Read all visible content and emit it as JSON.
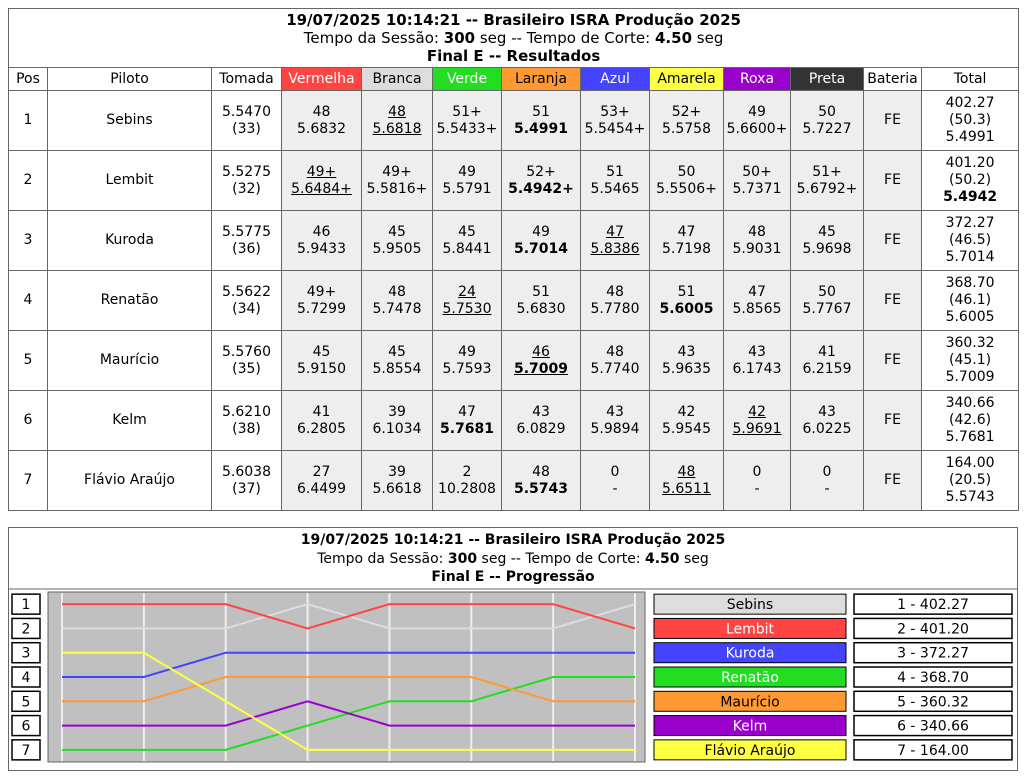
{
  "results": {
    "title": "19/07/2025 10:14:21 -- Brasileiro ISRA Produção 2025",
    "session": [
      "Tempo da Sessão:",
      "300",
      "seg -- Tempo de Corte:",
      "4.50",
      "seg"
    ],
    "subtitle": "Final E -- Resultados",
    "columns_before": [
      "Pos",
      "Piloto",
      "Tomada"
    ],
    "lanes": [
      {
        "name": "Vermelha",
        "color": "#ff4444"
      },
      {
        "name": "Branca",
        "color": "#dddddd"
      },
      {
        "name": "Verde",
        "color": "#22dd22"
      },
      {
        "name": "Laranja",
        "color": "#ff9933"
      },
      {
        "name": "Azul",
        "color": "#4444ff"
      },
      {
        "name": "Amarela",
        "color": "#ffff44"
      },
      {
        "name": "Roxa",
        "color": "#9900cc"
      },
      {
        "name": "Preta",
        "color": "#333333"
      }
    ],
    "columns_after": [
      "Bateria",
      "Total"
    ],
    "rows": [
      {
        "pos": "1",
        "driver": "Sebins",
        "tomada": [
          "5.5470",
          "(33)"
        ],
        "lanes": [
          {
            "laps": "48",
            "time": "5.6832"
          },
          {
            "laps": "48",
            "time": "5.6818",
            "underline": true
          },
          {
            "laps": "51+",
            "time": "5.5433+"
          },
          {
            "laps": "51",
            "time": "5.4991",
            "bold": true
          },
          {
            "laps": "53+",
            "time": "5.5454+"
          },
          {
            "laps": "52+",
            "time": "5.5758"
          },
          {
            "laps": "49",
            "time": "5.6600+"
          },
          {
            "laps": "50",
            "time": "5.7227"
          }
        ],
        "bateria": "FE",
        "total": [
          "402.27",
          "(50.3)",
          "5.4991"
        ]
      },
      {
        "pos": "2",
        "driver": "Lembit",
        "tomada": [
          "5.5275",
          "(32)"
        ],
        "lanes": [
          {
            "laps": "49+",
            "time": "5.6484+",
            "underline": true
          },
          {
            "laps": "49+",
            "time": "5.5816+"
          },
          {
            "laps": "49",
            "time": "5.5791"
          },
          {
            "laps": "52+",
            "time": "5.4942+",
            "bold": true
          },
          {
            "laps": "51",
            "time": "5.5465"
          },
          {
            "laps": "50",
            "time": "5.5506+"
          },
          {
            "laps": "50+",
            "time": "5.7371"
          },
          {
            "laps": "51+",
            "time": "5.6792+"
          }
        ],
        "bateria": "FE",
        "total": [
          "401.20",
          "(50.2)",
          "5.4942"
        ],
        "total_bold": true
      },
      {
        "pos": "3",
        "driver": "Kuroda",
        "tomada": [
          "5.5775",
          "(36)"
        ],
        "lanes": [
          {
            "laps": "46",
            "time": "5.9433"
          },
          {
            "laps": "45",
            "time": "5.9505"
          },
          {
            "laps": "45",
            "time": "5.8441"
          },
          {
            "laps": "49",
            "time": "5.7014",
            "bold": true
          },
          {
            "laps": "47",
            "time": "5.8386",
            "underline": true
          },
          {
            "laps": "47",
            "time": "5.7198"
          },
          {
            "laps": "48",
            "time": "5.9031"
          },
          {
            "laps": "45",
            "time": "5.9698"
          }
        ],
        "bateria": "FE",
        "total": [
          "372.27",
          "(46.5)",
          "5.7014"
        ]
      },
      {
        "pos": "4",
        "driver": "Renatão",
        "tomada": [
          "5.5622",
          "(34)"
        ],
        "lanes": [
          {
            "laps": "49+",
            "time": "5.7299"
          },
          {
            "laps": "48",
            "time": "5.7478"
          },
          {
            "laps": "24",
            "time": "5.7530",
            "underline": true
          },
          {
            "laps": "51",
            "time": "5.6830"
          },
          {
            "laps": "48",
            "time": "5.7780"
          },
          {
            "laps": "51",
            "time": "5.6005",
            "bold": true
          },
          {
            "laps": "47",
            "time": "5.8565"
          },
          {
            "laps": "50",
            "time": "5.7767"
          }
        ],
        "bateria": "FE",
        "total": [
          "368.70",
          "(46.1)",
          "5.6005"
        ]
      },
      {
        "pos": "5",
        "driver": "Maurício",
        "tomada": [
          "5.5760",
          "(35)"
        ],
        "lanes": [
          {
            "laps": "45",
            "time": "5.9150"
          },
          {
            "laps": "45",
            "time": "5.8554"
          },
          {
            "laps": "49",
            "time": "5.7593"
          },
          {
            "laps": "46",
            "time": "5.7009",
            "bold": true,
            "underline": true
          },
          {
            "laps": "48",
            "time": "5.7740"
          },
          {
            "laps": "43",
            "time": "5.9635"
          },
          {
            "laps": "43",
            "time": "6.1743"
          },
          {
            "laps": "41",
            "time": "6.2159"
          }
        ],
        "bateria": "FE",
        "total": [
          "360.32",
          "(45.1)",
          "5.7009"
        ]
      },
      {
        "pos": "6",
        "driver": "Kelm",
        "tomada": [
          "5.6210",
          "(38)"
        ],
        "lanes": [
          {
            "laps": "41",
            "time": "6.2805"
          },
          {
            "laps": "39",
            "time": "6.1034"
          },
          {
            "laps": "47",
            "time": "5.7681",
            "bold": true
          },
          {
            "laps": "43",
            "time": "6.0829"
          },
          {
            "laps": "43",
            "time": "5.9894"
          },
          {
            "laps": "42",
            "time": "5.9545"
          },
          {
            "laps": "42",
            "time": "5.9691",
            "underline": true
          },
          {
            "laps": "43",
            "time": "6.0225"
          }
        ],
        "bateria": "FE",
        "total": [
          "340.66",
          "(42.6)",
          "5.7681"
        ]
      },
      {
        "pos": "7",
        "driver": "Flávio Araújo",
        "tomada": [
          "5.6038",
          "(37)"
        ],
        "lanes": [
          {
            "laps": "27",
            "time": "6.4499"
          },
          {
            "laps": "39",
            "time": "5.6618"
          },
          {
            "laps": "2",
            "time": "10.2808"
          },
          {
            "laps": "48",
            "time": "5.5743",
            "bold": true
          },
          {
            "laps": "0",
            "time": "-"
          },
          {
            "laps": "48",
            "time": "5.6511",
            "underline": true
          },
          {
            "laps": "0",
            "time": "-"
          },
          {
            "laps": "0",
            "time": "-"
          }
        ],
        "bateria": "FE",
        "total": [
          "164.00",
          "(20.5)",
          "5.5743"
        ]
      }
    ]
  },
  "progression": {
    "title": "19/07/2025 10:14:21 -- Brasileiro ISRA Produção 2025",
    "session": [
      "Tempo da Sessão:",
      "300",
      "seg -- Tempo de Corte:",
      "4.50",
      "seg"
    ],
    "subtitle": "Final E -- Progressão"
  },
  "chart_data": {
    "type": "line",
    "ylim": [
      7.5,
      0.5
    ],
    "yticks": [
      1,
      2,
      3,
      4,
      5,
      6,
      7
    ],
    "grid": true,
    "series": [
      {
        "name": "Sebins",
        "color": "#dddddd",
        "values": [
          2,
          2,
          2,
          1,
          2,
          2,
          2,
          1
        ],
        "label": "1 - 402.27"
      },
      {
        "name": "Lembit",
        "color": "#ff4444",
        "values": [
          1,
          1,
          1,
          2,
          1,
          1,
          1,
          2
        ],
        "label": "2 - 401.20"
      },
      {
        "name": "Kuroda",
        "color": "#4444ff",
        "values": [
          4,
          4,
          3,
          3,
          3,
          3,
          3,
          3
        ],
        "label": "3 - 372.27"
      },
      {
        "name": "Renatão",
        "color": "#22dd22",
        "values": [
          7,
          7,
          7,
          6,
          5,
          5,
          4,
          4
        ],
        "label": "4 - 368.70"
      },
      {
        "name": "Maurício",
        "color": "#ff9933",
        "values": [
          5,
          5,
          4,
          4,
          4,
          4,
          5,
          5
        ],
        "label": "5 - 360.32"
      },
      {
        "name": "Kelm",
        "color": "#9900cc",
        "values": [
          6,
          6,
          6,
          5,
          6,
          6,
          6,
          6
        ],
        "label": "6 - 340.66"
      },
      {
        "name": "Flávio Araújo",
        "color": "#ffff44",
        "values": [
          3,
          3,
          5,
          7,
          7,
          7,
          7,
          7
        ],
        "label": "7 - 164.00"
      }
    ]
  }
}
